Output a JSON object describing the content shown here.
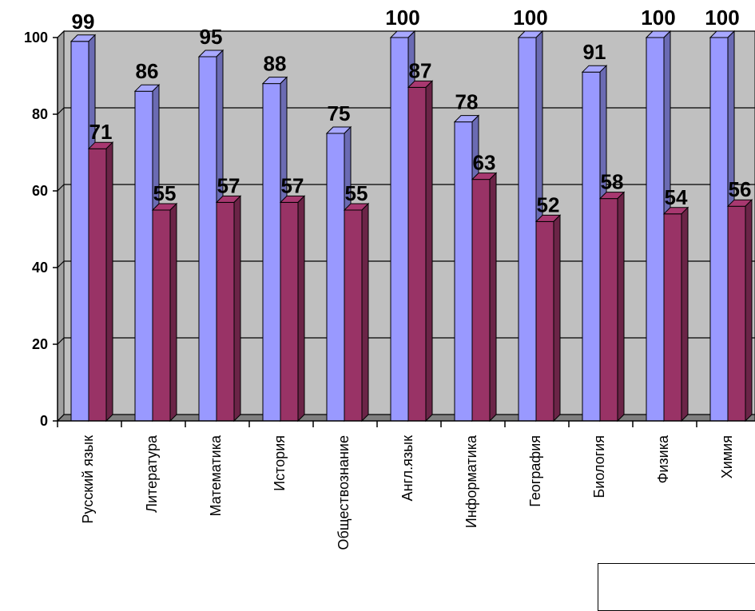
{
  "chart_data": {
    "type": "bar",
    "categories": [
      "Русский язык",
      "Литература",
      "Математика",
      "История",
      "Обществознание",
      "Англ.язык",
      "Информатика",
      "География",
      "Биология",
      "Физика",
      "Химия"
    ],
    "series": [
      {
        "values": [
          99,
          86,
          95,
          88,
          75,
          100,
          78,
          100,
          91,
          100,
          100
        ],
        "color": "#9999ff"
      },
      {
        "values": [
          71,
          55,
          57,
          57,
          55,
          87,
          63,
          52,
          58,
          54,
          56
        ],
        "color": "#993366"
      }
    ],
    "yticks": [
      0,
      20,
      40,
      60,
      80,
      100
    ],
    "ylim": [
      0,
      100
    ],
    "grid": true,
    "plot_background": "#c0c0c0",
    "style": "3d-bars"
  }
}
